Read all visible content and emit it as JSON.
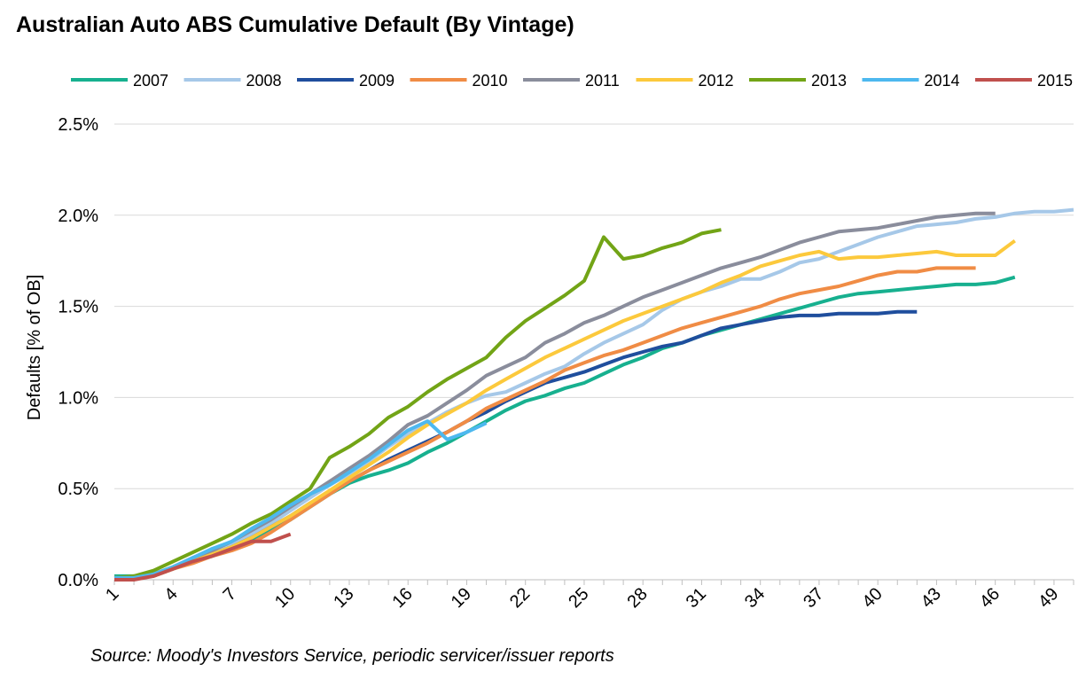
{
  "chart_data": {
    "type": "line",
    "title": "Australian Auto ABS Cumulative Default (By Vintage)",
    "source": "Source: Moody's Investors Service, periodic servicer/issuer reports",
    "xlabel": "",
    "ylabel": "Defaults [% of OB]",
    "xlim": [
      1,
      50
    ],
    "ylim": [
      0,
      2.5
    ],
    "xticks": [
      1,
      4,
      7,
      10,
      13,
      16,
      19,
      22,
      25,
      28,
      31,
      34,
      37,
      40,
      43,
      46,
      49
    ],
    "yticks": [
      0,
      0.5,
      1.0,
      1.5,
      2.0,
      2.5
    ],
    "ytick_labels": [
      "0.0%",
      "0.5%",
      "1.0%",
      "1.5%",
      "2.0%",
      "2.5%"
    ],
    "grid": true,
    "legend_position": "top",
    "series": [
      {
        "name": "2007",
        "color": "#17b08f",
        "values": [
          0.02,
          0.02,
          0.03,
          0.07,
          0.1,
          0.13,
          0.17,
          0.22,
          0.27,
          0.33,
          0.4,
          0.47,
          0.53,
          0.57,
          0.6,
          0.64,
          0.7,
          0.75,
          0.81,
          0.87,
          0.93,
          0.98,
          1.01,
          1.05,
          1.08,
          1.13,
          1.18,
          1.22,
          1.27,
          1.3,
          1.34,
          1.37,
          1.4,
          1.43,
          1.46,
          1.49,
          1.52,
          1.55,
          1.57,
          1.58,
          1.59,
          1.6,
          1.61,
          1.62,
          1.62,
          1.63,
          1.66
        ]
      },
      {
        "name": "2008",
        "color": "#a6c8e8",
        "values": [
          0.01,
          0.01,
          0.03,
          0.07,
          0.12,
          0.16,
          0.2,
          0.25,
          0.31,
          0.38,
          0.45,
          0.52,
          0.58,
          0.65,
          0.73,
          0.8,
          0.86,
          0.92,
          0.97,
          1.01,
          1.03,
          1.08,
          1.13,
          1.17,
          1.24,
          1.3,
          1.35,
          1.4,
          1.48,
          1.54,
          1.58,
          1.61,
          1.65,
          1.65,
          1.69,
          1.74,
          1.76,
          1.8,
          1.84,
          1.88,
          1.91,
          1.94,
          1.95,
          1.96,
          1.98,
          1.99,
          2.01,
          2.02,
          2.02,
          2.03
        ]
      },
      {
        "name": "2009",
        "color": "#1f4e9d",
        "values": [
          0.01,
          0.01,
          0.02,
          0.06,
          0.1,
          0.14,
          0.18,
          0.23,
          0.29,
          0.35,
          0.42,
          0.48,
          0.54,
          0.6,
          0.66,
          0.71,
          0.76,
          0.81,
          0.87,
          0.92,
          0.98,
          1.03,
          1.08,
          1.11,
          1.14,
          1.18,
          1.22,
          1.25,
          1.28,
          1.3,
          1.34,
          1.38,
          1.4,
          1.42,
          1.44,
          1.45,
          1.45,
          1.46,
          1.46,
          1.46,
          1.47,
          1.47
        ]
      },
      {
        "name": "2010",
        "color": "#f08c45",
        "values": [
          0.01,
          0.01,
          0.02,
          0.06,
          0.09,
          0.13,
          0.16,
          0.2,
          0.26,
          0.33,
          0.4,
          0.47,
          0.54,
          0.6,
          0.65,
          0.7,
          0.75,
          0.81,
          0.87,
          0.94,
          0.99,
          1.04,
          1.09,
          1.15,
          1.19,
          1.23,
          1.26,
          1.3,
          1.34,
          1.38,
          1.41,
          1.44,
          1.47,
          1.5,
          1.54,
          1.57,
          1.59,
          1.61,
          1.64,
          1.67,
          1.69,
          1.69,
          1.71,
          1.71,
          1.71
        ]
      },
      {
        "name": "2011",
        "color": "#8a8d9c",
        "values": [
          0.01,
          0.01,
          0.03,
          0.07,
          0.12,
          0.16,
          0.21,
          0.27,
          0.33,
          0.4,
          0.47,
          0.54,
          0.61,
          0.68,
          0.76,
          0.85,
          0.9,
          0.97,
          1.04,
          1.12,
          1.17,
          1.22,
          1.3,
          1.35,
          1.41,
          1.45,
          1.5,
          1.55,
          1.59,
          1.63,
          1.67,
          1.71,
          1.74,
          1.77,
          1.81,
          1.85,
          1.88,
          1.91,
          1.92,
          1.93,
          1.95,
          1.97,
          1.99,
          2.0,
          2.01,
          2.01
        ]
      },
      {
        "name": "2012",
        "color": "#fcc93c",
        "values": [
          0.01,
          0.01,
          0.02,
          0.06,
          0.1,
          0.14,
          0.18,
          0.23,
          0.29,
          0.35,
          0.42,
          0.49,
          0.56,
          0.63,
          0.7,
          0.78,
          0.85,
          0.91,
          0.97,
          1.04,
          1.1,
          1.16,
          1.22,
          1.27,
          1.32,
          1.37,
          1.42,
          1.46,
          1.5,
          1.54,
          1.58,
          1.63,
          1.67,
          1.72,
          1.75,
          1.78,
          1.8,
          1.76,
          1.77,
          1.77,
          1.78,
          1.79,
          1.8,
          1.78,
          1.78,
          1.78,
          1.86
        ]
      },
      {
        "name": "2013",
        "color": "#72a416",
        "values": [
          0.01,
          0.02,
          0.05,
          0.1,
          0.15,
          0.2,
          0.25,
          0.31,
          0.36,
          0.43,
          0.5,
          0.67,
          0.73,
          0.8,
          0.89,
          0.95,
          1.03,
          1.1,
          1.16,
          1.22,
          1.33,
          1.42,
          1.49,
          1.56,
          1.64,
          1.88,
          1.76,
          1.78,
          1.82,
          1.85,
          1.9,
          1.92
        ]
      },
      {
        "name": "2014",
        "color": "#4db8ef",
        "values": [
          0.01,
          0.01,
          0.03,
          0.07,
          0.12,
          0.17,
          0.21,
          0.28,
          0.34,
          0.41,
          0.47,
          0.52,
          0.59,
          0.66,
          0.74,
          0.82,
          0.87,
          0.77,
          0.81,
          0.86
        ]
      },
      {
        "name": "2015",
        "color": "#c0504d",
        "values": [
          0.0,
          0.0,
          0.02,
          0.06,
          0.1,
          0.13,
          0.17,
          0.21,
          0.21,
          0.25
        ]
      }
    ]
  }
}
